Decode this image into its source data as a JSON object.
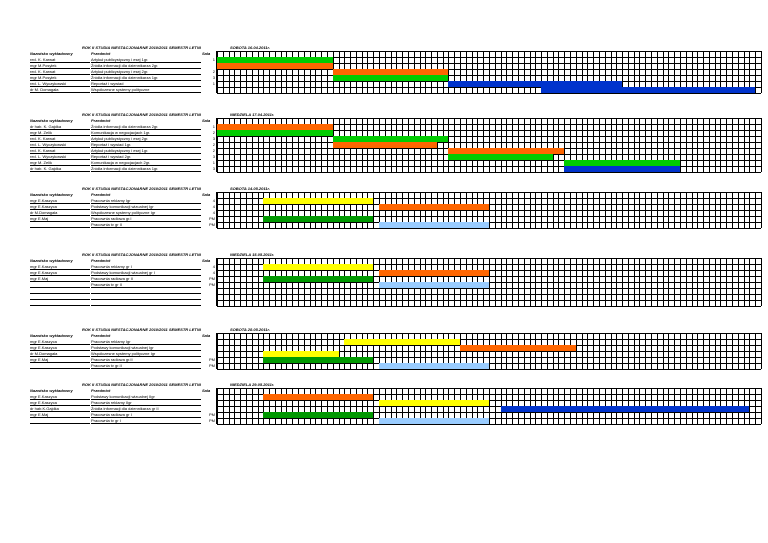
{
  "blocks": [
    {
      "title": "ROK II STUDIA NIESTACJONARNE 2010/2011 SEMESTR LETNI",
      "date": "SOBOTA 16.04.2011r.",
      "header": {
        "lecturer": "Nazwisko wykładowcy",
        "subject": "Przedmiot",
        "room": "Sala"
      },
      "rows": [
        {
          "lecturer": "red. K. Karwat",
          "subject": "Artykuł publicystyczny i esej 1gr.",
          "room": "1"
        },
        {
          "lecturer": "mgr M.Posyłek",
          "subject": "Źródła informacji dla dziennikarza 2gr.",
          "room": ""
        },
        {
          "lecturer": "red. K. Karwat",
          "subject": "Artykuł publicystyczny i esej 2gr.",
          "room": "2"
        },
        {
          "lecturer": "mgr M.Posyłek",
          "subject": "Źródła informacji dla dziennikarza 1gr.",
          "room": "3"
        },
        {
          "lecturer": "red. L. Wyczykowski",
          "subject": "Reportaż i wywiad",
          "room": "1"
        },
        {
          "lecturer": "dr M. Domagała",
          "subject": "Współczesne systemy polityczne",
          "room": ""
        }
      ]
    },
    {
      "title": "ROK II STUDIA NIESTACJONARNE 2010/2011 SEMESTR LETNI",
      "date": "NIEDZIELA 17.04.2011r.",
      "header": {
        "lecturer": "Nazwisko wykładowcy",
        "subject": "Przedmiot",
        "room": "Sala"
      },
      "rows": [
        {
          "lecturer": "dr hab. K. Gajdka",
          "subject": "Źródła informacji dla dziennikarza 2gr.",
          "room": "1"
        },
        {
          "lecturer": "mgr M. Zelik",
          "subject": "Komunikacja w negocjacjach 1gr.",
          "room": "2"
        },
        {
          "lecturer": "red. K. Karwat",
          "subject": "Artykuł publicystyczny i esej 2gr.",
          "room": "3"
        },
        {
          "lecturer": "red. L. Wyczykowski",
          "subject": "Reportaż i wywiad 1gr.",
          "room": "2"
        },
        {
          "lecturer": "red. K. Karwat",
          "subject": "Artykuł publicystyczny i esej 1gr.",
          "room": "2"
        },
        {
          "lecturer": "red. L. Wyczykowski",
          "subject": "Reportaż i wywiad 2gr.",
          "room": "3"
        },
        {
          "lecturer": "mgr M. Zelik",
          "subject": "Komunikacja w negocjacjach 2gr.",
          "room": "1"
        },
        {
          "lecturer": "dr hab. K. Gajdka",
          "subject": "Źródła informacji dla dziennikarza 1gr.",
          "room": "3"
        }
      ]
    },
    {
      "title": "ROK II STUDIA NIESTACJONARNE 2010/2011 SEMESTR LETNI",
      "date": "SOBOTA 14.05.2011r.",
      "header": {
        "lecturer": "Nazwisko wykładowcy",
        "subject": "Przedmiot",
        "room": "Sala"
      },
      "rows": [
        {
          "lecturer": "mgr E.Kaszyca",
          "subject": "Pracownia reklamy Igr",
          "room": "4"
        },
        {
          "lecturer": "mgr E.Kaszyca",
          "subject": "Podstawy komunikacji wizualnej Igr",
          "room": "4"
        },
        {
          "lecturer": "dr M.Domagała",
          "subject": "Współczesne systemy polityczne Igr",
          "room": "4"
        },
        {
          "lecturer": "mgr E.Maj",
          "subject": "Pracownia radiowa gr.I",
          "room": "PM"
        },
        {
          "lecturer": "",
          "subject": "Pracownia tv gr II",
          "room": "PM"
        }
      ]
    },
    {
      "title": "ROK II STUDIA NIESTACJONARNE 2010/2011 SEMESTR LETNI",
      "date": "NIEDZIELA 15.05.2011r.",
      "header": {
        "lecturer": "Nazwisko wykładowcy",
        "subject": "Przedmiot",
        "room": "Sala"
      },
      "rows": [
        {
          "lecturer": "mgr E.Kaszyca",
          "subject": "Pracownia reklamy gr I",
          "room": "4"
        },
        {
          "lecturer": "mgr E.Kaszyca",
          "subject": "Podstawy komunikacji wizualnej gr I",
          "room": "4"
        },
        {
          "lecturer": "mgr E.Maj",
          "subject": "Pracownia radiowa gr II",
          "room": "PM"
        },
        {
          "lecturer": "",
          "subject": "Pracownia tv gr II",
          "room": "PM"
        },
        {
          "lecturer": "",
          "subject": "",
          "room": ""
        },
        {
          "lecturer": "",
          "subject": "",
          "room": ""
        },
        {
          "lecturer": "",
          "subject": "",
          "room": ""
        }
      ]
    },
    {
      "title": "ROK II STUDIA NIESTACJONARNE 2010/2011 SEMESTR LETNI",
      "date": "SOBOTA 28.05.2011r.",
      "header": {
        "lecturer": "Nazwisko wykładowcy",
        "subject": "Przedmiot",
        "room": "Sala"
      },
      "rows": [
        {
          "lecturer": "mgr E.Kaszyca",
          "subject": "Pracownia reklamy Igr",
          "room": ""
        },
        {
          "lecturer": "mgr E.Kaszyca",
          "subject": "Podstawy komunikacji wizualnej Igr",
          "room": ""
        },
        {
          "lecturer": "dr M.Domagała",
          "subject": "Współczesne systemy polityczne Igr",
          "room": ""
        },
        {
          "lecturer": "mgr E.Maj",
          "subject": "Pracownia radiowa gr.II",
          "room": "PM"
        },
        {
          "lecturer": "",
          "subject": "Pracownia tv gr.II",
          "room": "PM"
        }
      ]
    },
    {
      "title": "ROK II STUDIA NIESTACJONARNE 2010/2011 SEMESTR LETNI",
      "date": "NIEDZIELA 29.05.2011r.",
      "header": {
        "lecturer": "Nazwisko wykładowcy",
        "subject": "Przedmiot",
        "room": "Sala"
      },
      "rows": [
        {
          "lecturer": "mgr E.Kaszyca",
          "subject": "Podstawy komunikacji wizualnej IIgr",
          "room": ""
        },
        {
          "lecturer": "mgr E.Kaszyca",
          "subject": "Pracownia reklamy IIgr",
          "room": ""
        },
        {
          "lecturer": "dr hab.K.Gajdka",
          "subject": "Źródła informacji dla dziennikarza gr II",
          "room": ""
        },
        {
          "lecturer": "mgr E.Maj",
          "subject": "Pracownia radiowa gr I",
          "room": "PM"
        },
        {
          "lecturer": "",
          "subject": "Pracownia tv gr I",
          "room": "PM"
        }
      ]
    }
  ],
  "bars": [
    [
      {
        "row": 0,
        "start": 1,
        "span": 20,
        "color": "#00cc00"
      },
      {
        "row": 1,
        "start": 1,
        "span": 20,
        "color": "#ff6600"
      },
      {
        "row": 2,
        "start": 21,
        "span": 20,
        "color": "#ff6600"
      },
      {
        "row": 3,
        "start": 21,
        "span": 20,
        "color": "#00cc00"
      },
      {
        "row": 4,
        "start": 41,
        "span": 30,
        "color": "#0033cc"
      },
      {
        "row": 5,
        "start": 57,
        "span": 37,
        "color": "#0033cc"
      }
    ],
    [
      {
        "row": 0,
        "start": 1,
        "span": 20,
        "color": "#ff6600"
      },
      {
        "row": 1,
        "start": 1,
        "span": 20,
        "color": "#00cc00"
      },
      {
        "row": 2,
        "start": 21,
        "span": 20,
        "color": "#00cc00"
      },
      {
        "row": 3,
        "start": 21,
        "span": 18,
        "color": "#ff6600"
      },
      {
        "row": 4,
        "start": 41,
        "span": 20,
        "color": "#ff6600"
      },
      {
        "row": 5,
        "start": 41,
        "span": 18,
        "color": "#00cc00"
      },
      {
        "row": 6,
        "start": 61,
        "span": 20,
        "color": "#00cc00"
      },
      {
        "row": 7,
        "start": 61,
        "span": 20,
        "color": "#0033cc"
      }
    ],
    [
      {
        "row": 0,
        "start": 9,
        "span": 19,
        "color": "#ffff00"
      },
      {
        "row": 1,
        "start": 29,
        "span": 19,
        "color": "#ff6600"
      },
      {
        "row": 3,
        "start": 9,
        "span": 19,
        "color": "#009900"
      },
      {
        "row": 4,
        "start": 29,
        "span": 19,
        "color": "#99ccff"
      }
    ],
    [
      {
        "row": 0,
        "start": 9,
        "span": 19,
        "color": "#ffff00"
      },
      {
        "row": 1,
        "start": 29,
        "span": 19,
        "color": "#ff6600"
      },
      {
        "row": 2,
        "start": 9,
        "span": 19,
        "color": "#009900"
      },
      {
        "row": 3,
        "start": 29,
        "span": 19,
        "color": "#99ccff"
      }
    ],
    [
      {
        "row": 0,
        "start": 23,
        "span": 20,
        "color": "#ffff00"
      },
      {
        "row": 1,
        "start": 43,
        "span": 20,
        "color": "#ff6600"
      },
      {
        "row": 2,
        "start": 9,
        "span": 13,
        "color": "#ffff00"
      },
      {
        "row": 3,
        "start": 9,
        "span": 19,
        "color": "#009900"
      },
      {
        "row": 4,
        "start": 29,
        "span": 19,
        "color": "#99ccff"
      }
    ],
    [
      {
        "row": 0,
        "start": 9,
        "span": 19,
        "color": "#ff6600"
      },
      {
        "row": 1,
        "start": 29,
        "span": 19,
        "color": "#ffff00"
      },
      {
        "row": 2,
        "start": 50,
        "span": 43,
        "color": "#0033cc"
      },
      {
        "row": 3,
        "start": 9,
        "span": 19,
        "color": "#009900"
      },
      {
        "row": 4,
        "start": 29,
        "span": 19,
        "color": "#99ccff"
      }
    ]
  ]
}
